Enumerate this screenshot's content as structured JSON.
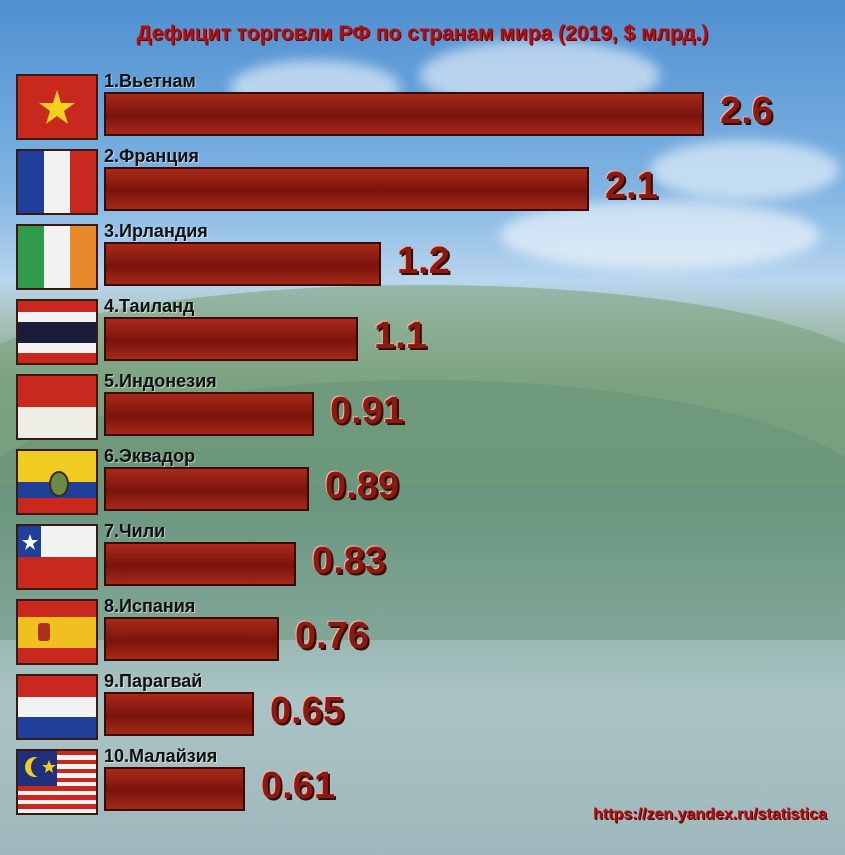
{
  "chart_data": {
    "type": "bar",
    "orientation": "horizontal",
    "title": "Дефицит торговли РФ по странам мира (2019, $ млрд.)",
    "categories": [
      "1.Вьетнам",
      "2.Франция",
      "3.Ирландия",
      "4.Таиланд",
      "5.Индонезия",
      "6.Эквадор",
      "7.Чили",
      "8.Испания",
      "9.Парагвай",
      "10.Малайзия"
    ],
    "values": [
      2.6,
      2.1,
      1.2,
      1.1,
      0.91,
      0.89,
      0.83,
      0.76,
      0.65,
      0.61
    ],
    "value_labels": [
      "2.6",
      "2.1",
      "1.2",
      "1.1",
      "0.91",
      "0.89",
      "0.83",
      "0.76",
      "0.65",
      "0.61"
    ],
    "flag_icons": [
      "vietnam-flag-icon",
      "france-flag-icon",
      "ireland-flag-icon",
      "thailand-flag-icon",
      "indonesia-flag-icon",
      "ecuador-flag-icon",
      "chile-flag-icon",
      "spain-flag-icon",
      "paraguay-flag-icon",
      "malaysia-flag-icon"
    ],
    "xlim": [
      0,
      2.6
    ],
    "grid": false,
    "colors": {
      "bar": "#8b1a10",
      "title": "#b01010",
      "value": "#8a1a12"
    }
  },
  "source": "https://zen.yandex.ru/statistica"
}
